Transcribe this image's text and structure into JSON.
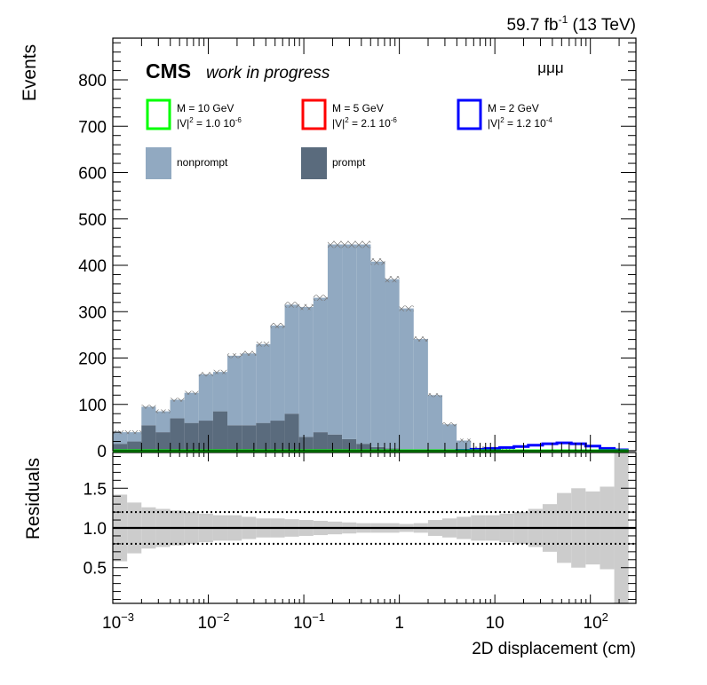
{
  "header": {
    "lumi": "59.7 fb",
    "lumi_exp": "-1",
    "energy": "(13 TeV)",
    "cms": "CMS",
    "wip": "work in progress",
    "channel": "μμμ"
  },
  "legend": {
    "signals": [
      {
        "name": "M = 10 GeV",
        "coupling": "|V|",
        "sq": "2",
        "eq": " = 1.0 10",
        "exp": "-6",
        "color": "#00ff00"
      },
      {
        "name": "M = 5 GeV",
        "coupling": "|V|",
        "sq": "2",
        "eq": " = 2.1 10",
        "exp": "-6",
        "color": "#ff0000"
      },
      {
        "name": "M = 2 GeV",
        "coupling": "|V|",
        "sq": "2",
        "eq": " = 1.2 10",
        "exp": "-4",
        "color": "#0000ff"
      }
    ],
    "backgrounds": [
      {
        "name": "nonprompt",
        "color": "#91a9c1"
      },
      {
        "name": "prompt",
        "color": "#5a6b7d"
      }
    ]
  },
  "chart_data": {
    "type": "bar",
    "stacked": true,
    "xscale": "log",
    "xlim": [
      0.001,
      300
    ],
    "xlabel": "2D displacement (cm)",
    "ylabel": "Events",
    "ylim": [
      0,
      890
    ],
    "xticks": [
      {
        "v": 0.001,
        "base": "10",
        "exp": "−3"
      },
      {
        "v": 0.01,
        "base": "10",
        "exp": "−2"
      },
      {
        "v": 0.1,
        "base": "10",
        "exp": "−1"
      },
      {
        "v": 1,
        "base": "1",
        "exp": ""
      },
      {
        "v": 10,
        "base": "10",
        "exp": ""
      },
      {
        "v": 100,
        "base": "10",
        "exp": "2"
      }
    ],
    "yticks": [
      "0",
      "100",
      "200",
      "300",
      "400",
      "500",
      "600",
      "700",
      "800"
    ],
    "bin_edges_log10": [
      -3.0,
      -2.85,
      -2.7,
      -2.55,
      -2.4,
      -2.25,
      -2.1,
      -1.95,
      -1.8,
      -1.65,
      -1.5,
      -1.35,
      -1.2,
      -1.05,
      -0.9,
      -0.75,
      -0.6,
      -0.45,
      -0.3,
      -0.15,
      0.0,
      0.15,
      0.3,
      0.45,
      0.6,
      0.75,
      0.9,
      1.05,
      1.2,
      1.35,
      1.5,
      1.65,
      1.8,
      1.95,
      2.1,
      2.25,
      2.4
    ],
    "series": [
      {
        "name": "prompt",
        "values": [
          15,
          20,
          55,
          40,
          70,
          60,
          65,
          85,
          55,
          55,
          60,
          65,
          80,
          30,
          40,
          35,
          25,
          15,
          8,
          5,
          2,
          1,
          0,
          0,
          0,
          0,
          0,
          0,
          0,
          0,
          0,
          0,
          0,
          0,
          0,
          0
        ]
      },
      {
        "name": "nonprompt",
        "values": [
          25,
          20,
          40,
          45,
          40,
          65,
          100,
          85,
          150,
          155,
          170,
          205,
          235,
          280,
          290,
          410,
          420,
          430,
          400,
          365,
          305,
          240,
          120,
          57,
          22,
          5,
          3,
          1,
          0,
          0,
          0,
          0,
          0,
          0,
          0,
          0
        ]
      },
      {
        "name": "M = 2 GeV",
        "values": [
          0,
          0,
          0,
          0,
          0,
          0,
          0,
          0,
          0,
          0,
          0,
          0,
          0,
          0,
          0,
          0,
          0,
          0,
          0,
          0,
          0,
          0,
          0,
          0,
          1,
          3,
          5,
          7,
          9,
          12,
          15,
          17,
          15,
          10,
          5,
          2
        ]
      },
      {
        "name": "M = 5 GeV",
        "values": [
          0,
          0,
          0,
          0,
          0,
          0,
          0,
          0,
          0,
          0,
          0,
          0,
          0,
          0,
          0,
          0,
          0,
          0,
          0,
          0,
          0,
          0,
          0,
          0,
          0,
          0,
          0,
          0,
          0,
          0,
          0,
          0,
          0,
          0,
          0,
          0
        ]
      },
      {
        "name": "M = 10 GeV",
        "values": [
          0,
          0,
          0,
          0,
          0,
          0,
          0,
          0,
          0,
          0,
          0,
          0,
          0,
          0,
          0,
          0,
          0,
          0,
          0,
          0,
          0,
          0,
          0,
          0,
          0,
          0,
          0,
          0,
          0,
          0,
          0,
          0,
          0,
          0,
          0,
          0
        ]
      }
    ],
    "ratio": {
      "ylabel": "Residuals",
      "ylim": [
        0.05,
        1.95
      ],
      "yticks": [
        "0.5",
        "1.0",
        "1.5"
      ],
      "reference_lines": [
        0.8,
        1.0,
        1.2
      ],
      "uncertainty_half_width": [
        0.42,
        0.32,
        0.26,
        0.24,
        0.22,
        0.2,
        0.18,
        0.16,
        0.16,
        0.14,
        0.12,
        0.12,
        0.11,
        0.1,
        0.09,
        0.08,
        0.07,
        0.06,
        0.06,
        0.06,
        0.05,
        0.06,
        0.1,
        0.12,
        0.14,
        0.16,
        0.16,
        0.18,
        0.2,
        0.24,
        0.3,
        0.44,
        0.5,
        0.46,
        0.52,
        1.0
      ]
    }
  }
}
